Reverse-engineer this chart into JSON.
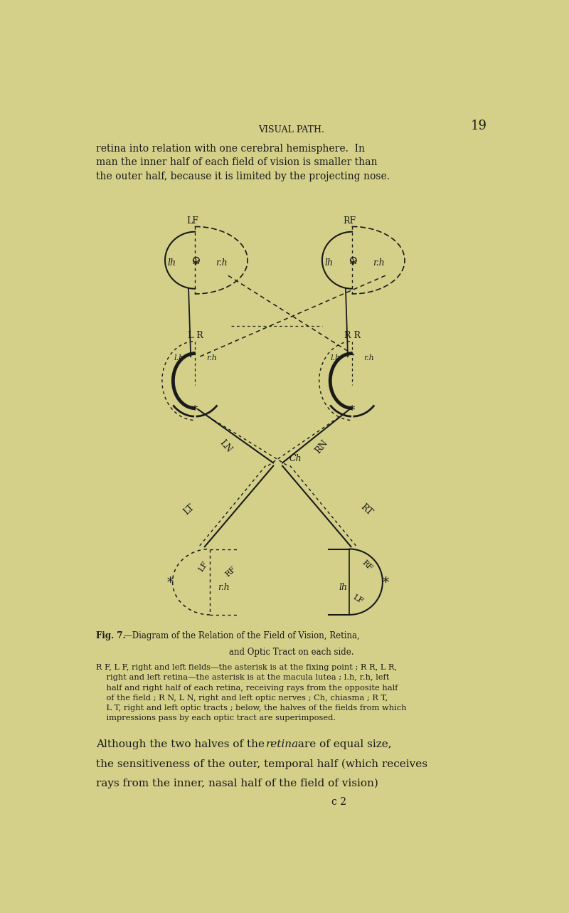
{
  "bg_color": "#d4d08a",
  "text_color": "#1a1a1a",
  "line_color": "#1a1a1a",
  "page_title": "VISUAL PATH.",
  "page_number": "19",
  "para1": "retina into relation with one cerebral hemisphere.  In\nman the inner half of each field of vision is smaller than\nthe outer half, because it is limited by the projecting nose.",
  "fig_caption_title1": "Fig. 7.",
  "fig_caption_title2": "—Diagram of the Relation of the Field of Vision, Retina,",
  "fig_caption_title3": "and Optic Tract on each side.",
  "fig_caption_body": "R F, L F, right and left fields—the asterisk is at the fixing point ; R R, L R,\n    right and left retina—the asterisk is at the macula lutea ; l.h, r.h, left\n    half and right half of each retina, receiving rays from the opposite half\n    of the field ; R N, L N, right and left optic nerves ; Ch, chiasma ; R T,\n    L T, right and left optic tracts ; below, the halves of the fields from which\n    impressions pass by each optic tract are superimposed.",
  "para2a": "Although the two halves of the ",
  "para2_italic": "retina",
  "para2b": " are of equal size,",
  "para2c": "the sensitiveness of the outer, temporal half (which receives",
  "para2d": "rays from the inner, nasal half of the field of vision)",
  "page_sig": "c 2"
}
